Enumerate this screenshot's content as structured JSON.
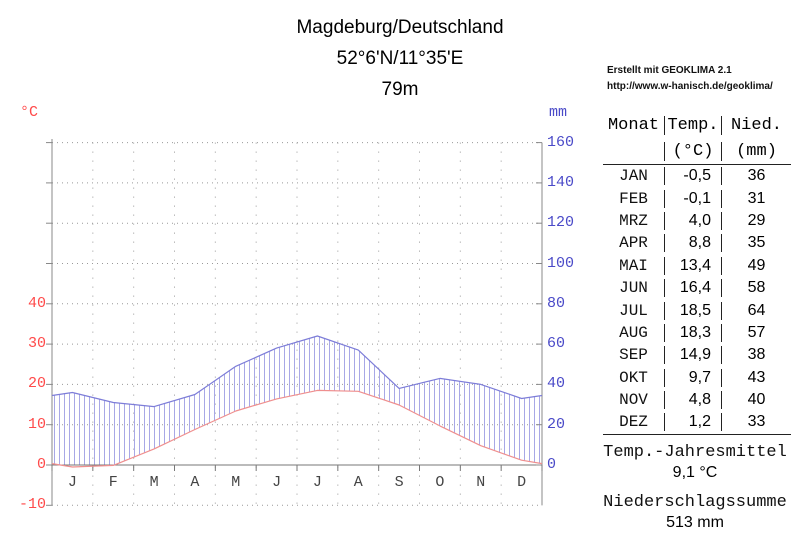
{
  "header": {
    "title": "Magdeburg/Deutschland",
    "coordinates": "52°6'N/11°35'E",
    "elevation": "79m"
  },
  "credit": {
    "line1": "Erstellt mit GEOKLIMA 2.1",
    "line2": "http://www.w-hanisch.de/geoklima/"
  },
  "chart_data": {
    "type": "line",
    "subtype": "walter-lieth-climate-diagram",
    "station": "Magdeburg/Deutschland",
    "categories": [
      "JAN",
      "FEB",
      "MRZ",
      "APR",
      "MAI",
      "JUN",
      "JUL",
      "AUG",
      "SEP",
      "OKT",
      "NOV",
      "DEZ"
    ],
    "month_letters": [
      "J",
      "F",
      "M",
      "A",
      "M",
      "J",
      "J",
      "A",
      "S",
      "O",
      "N",
      "D"
    ],
    "series": [
      {
        "name": "Temperatur",
        "unit": "°C",
        "axis": "left",
        "values": [
          -0.5,
          -0.1,
          4.0,
          8.8,
          13.4,
          16.4,
          18.5,
          18.3,
          14.9,
          9.7,
          4.8,
          1.2
        ],
        "color": "#ef8f8f"
      },
      {
        "name": "Niederschlag",
        "unit": "mm",
        "axis": "right",
        "values": [
          36,
          31,
          29,
          35,
          49,
          58,
          64,
          57,
          38,
          43,
          40,
          33
        ],
        "color": "#7d7dd8",
        "hatch_color": "#a8a8e6"
      }
    ],
    "left_axis": {
      "label": "°C",
      "color": "#ff4a4a",
      "ticks_labeled": [
        40,
        30,
        20,
        10,
        0,
        -10
      ],
      "ticks_unlabeled": [
        50,
        60,
        70,
        80
      ],
      "range": [
        -10,
        80
      ]
    },
    "right_axis": {
      "label": "mm",
      "color": "#4a4ac8",
      "ticks_labeled": [
        160,
        140,
        120,
        100,
        80,
        60,
        40,
        20,
        0
      ],
      "range_mm": [
        0,
        160
      ]
    },
    "scale_note": "10 °C = 20 mm",
    "grid": "dotted"
  },
  "table": {
    "headers": {
      "col1": "Monat",
      "col2": "Temp.",
      "col3": "Nied.",
      "col2_unit": "(°C)",
      "col3_unit": "(mm)"
    },
    "rows": [
      {
        "month": "JAN",
        "temp": "-0,5",
        "nied": "36"
      },
      {
        "month": "FEB",
        "temp": "-0,1",
        "nied": "31"
      },
      {
        "month": "MRZ",
        "temp": "4,0",
        "nied": "29"
      },
      {
        "month": "APR",
        "temp": "8,8",
        "nied": "35"
      },
      {
        "month": "MAI",
        "temp": "13,4",
        "nied": "49"
      },
      {
        "month": "JUN",
        "temp": "16,4",
        "nied": "58"
      },
      {
        "month": "JUL",
        "temp": "18,5",
        "nied": "64"
      },
      {
        "month": "AUG",
        "temp": "18,3",
        "nied": "57"
      },
      {
        "month": "SEP",
        "temp": "14,9",
        "nied": "38"
      },
      {
        "month": "OKT",
        "temp": "9,7",
        "nied": "43"
      },
      {
        "month": "NOV",
        "temp": "4,8",
        "nied": "40"
      },
      {
        "month": "DEZ",
        "temp": "1,2",
        "nied": "33"
      }
    ]
  },
  "summary": {
    "temp_mean_label": "Temp.-Jahresmittel",
    "temp_mean_value": "9,1 °C",
    "precip_sum_label": "Niederschlagssumme",
    "precip_sum_value": "513 mm"
  }
}
